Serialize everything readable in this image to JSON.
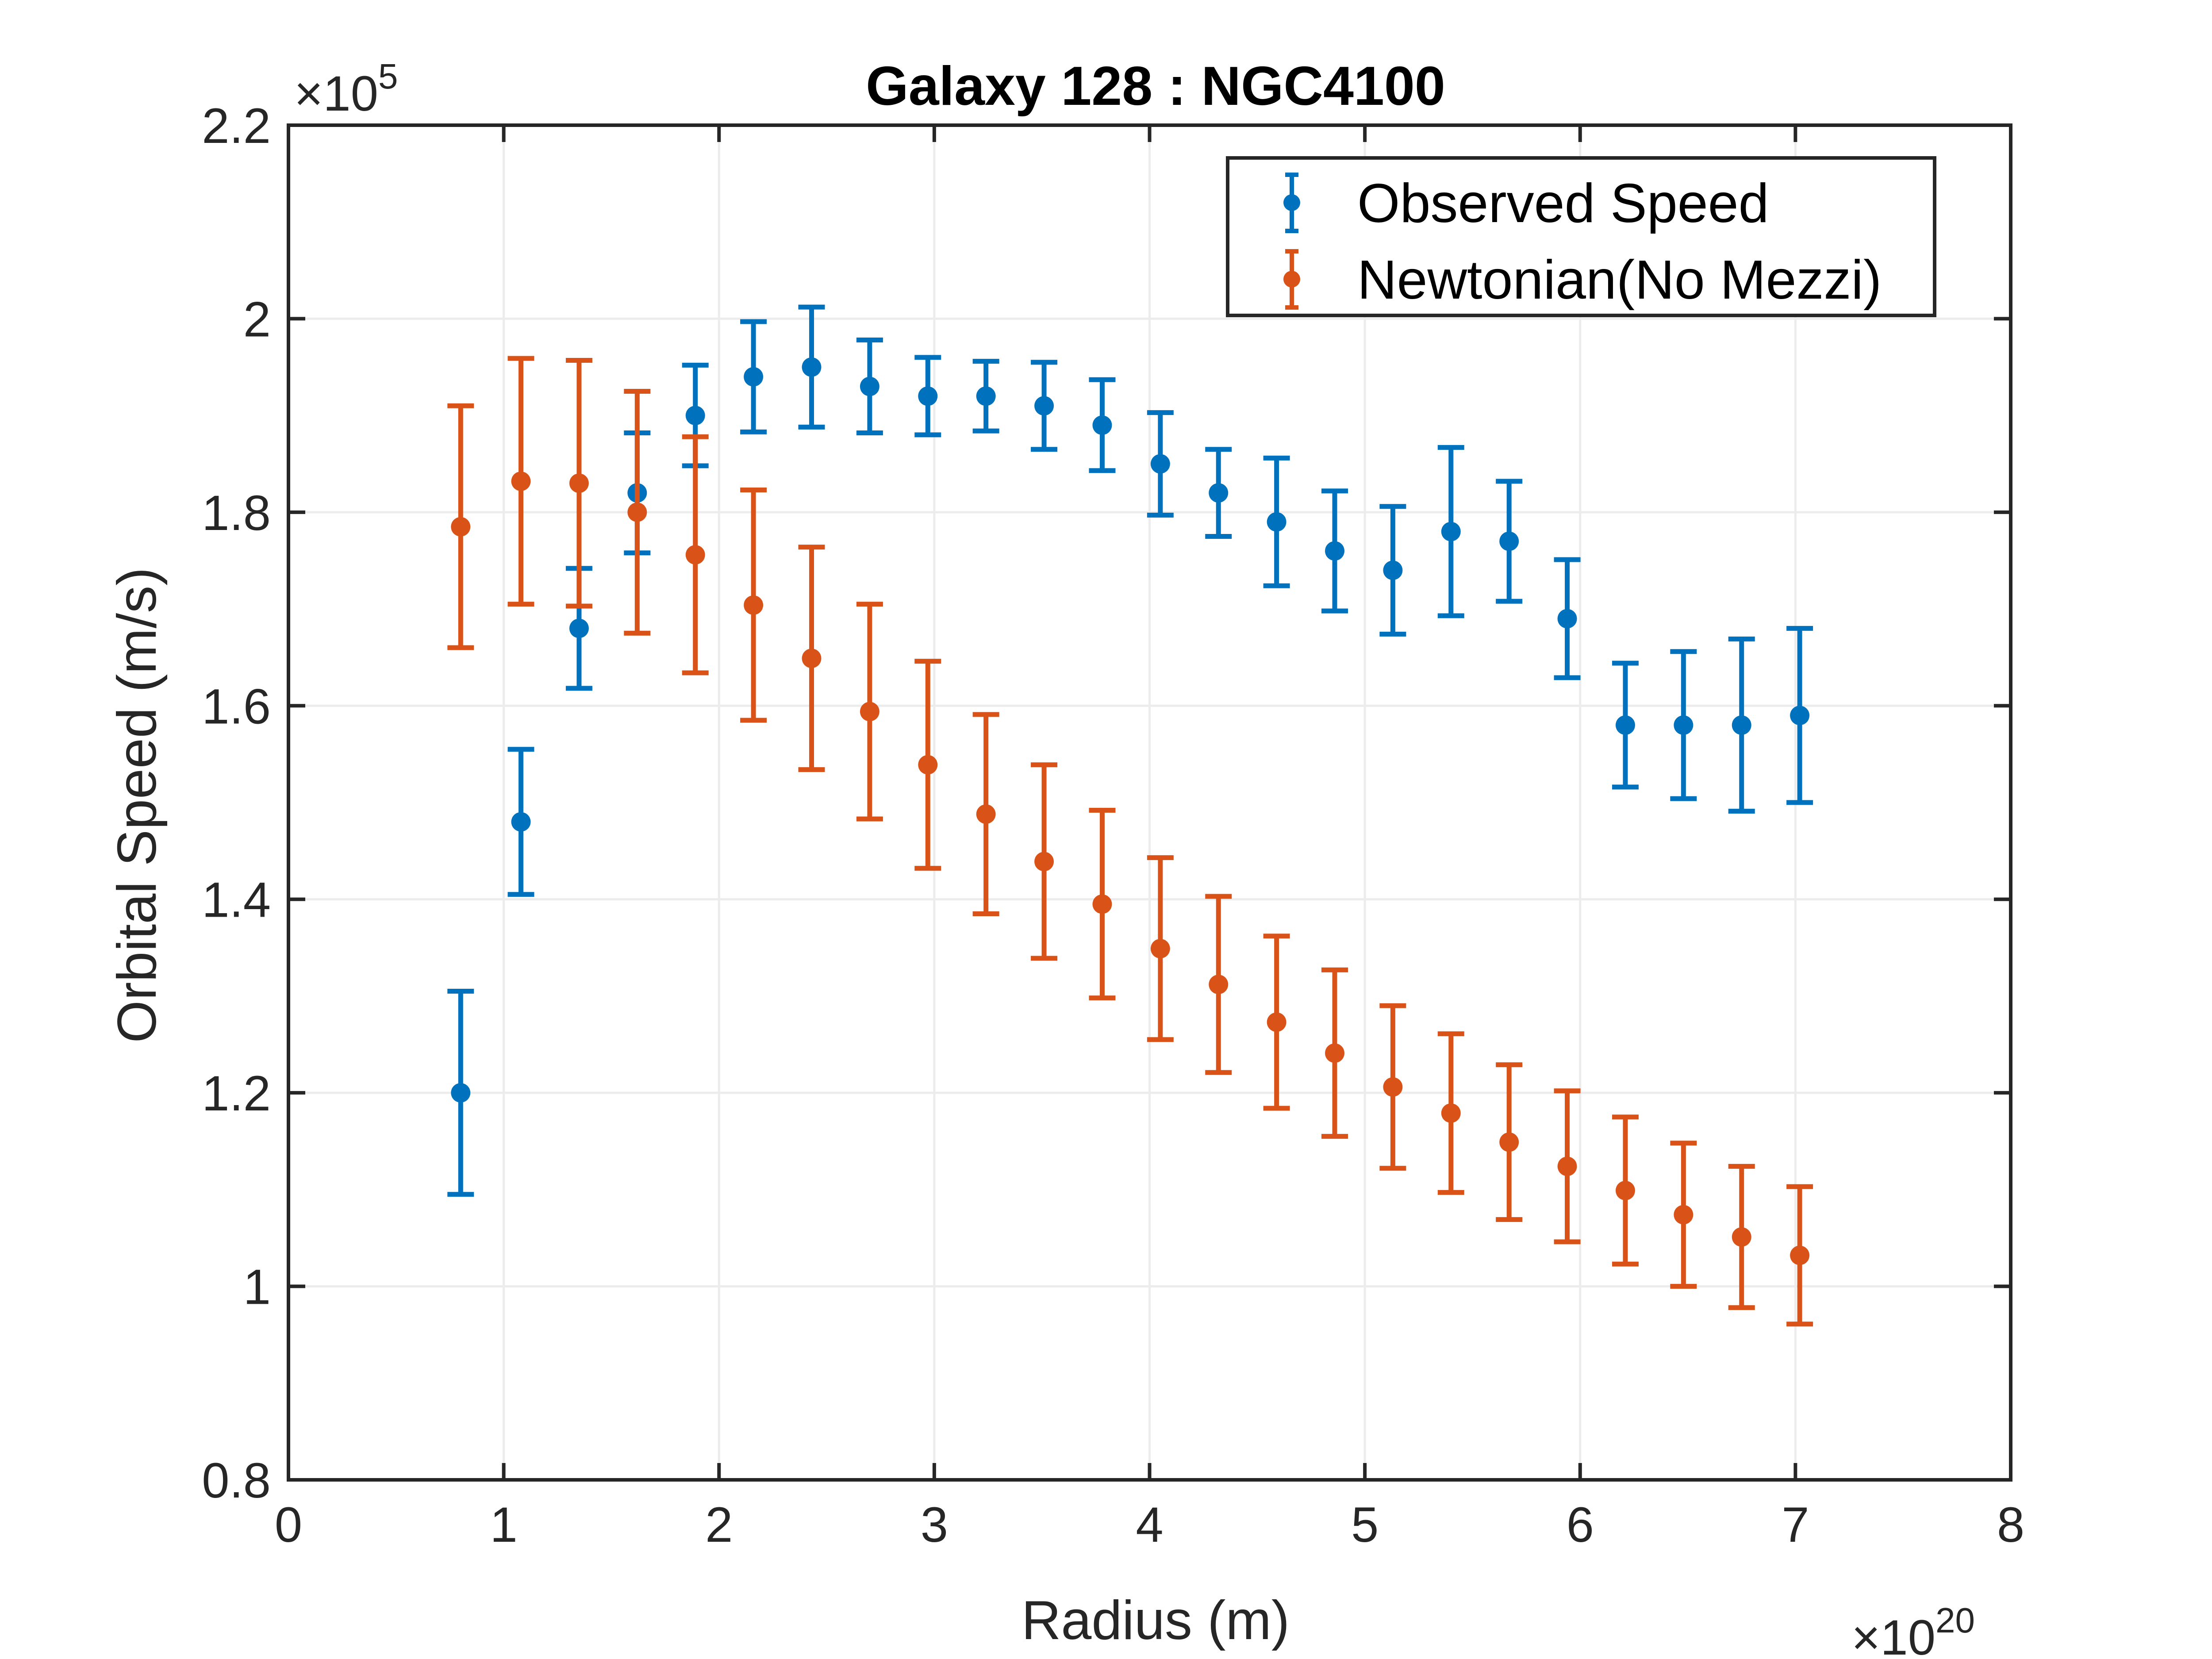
{
  "chart_data": {
    "type": "scatter",
    "title": "Galaxy 128 : NGC4100",
    "xlabel": "Radius (m)",
    "ylabel": "Orbital Speed (m/s)",
    "x_multiplier": {
      "base": "×10",
      "exponent": "20"
    },
    "y_multiplier": {
      "base": "×10",
      "exponent": "5"
    },
    "xlim": [
      0,
      8
    ],
    "ylim": [
      0.8,
      2.2
    ],
    "x_ticks": [
      0,
      1,
      2,
      3,
      4,
      5,
      6,
      7,
      8
    ],
    "x_tick_labels": [
      "0",
      "1",
      "2",
      "3",
      "4",
      "5",
      "6",
      "7",
      "8"
    ],
    "y_ticks": [
      0.8,
      1.0,
      1.2,
      1.4,
      1.6,
      1.8,
      2.0,
      2.2
    ],
    "y_tick_labels": [
      "0.8",
      "1",
      "1.2",
      "1.4",
      "1.6",
      "1.8",
      "2",
      "2.2"
    ],
    "grid": true,
    "legend_position": "top-right",
    "series": [
      {
        "name": "Observed Speed",
        "color": "#0072BD",
        "x": [
          0.8,
          1.08,
          1.35,
          1.62,
          1.89,
          2.16,
          2.43,
          2.7,
          2.97,
          3.24,
          3.51,
          3.78,
          4.05,
          4.32,
          4.59,
          4.86,
          5.13,
          5.4,
          5.67,
          5.94,
          6.21,
          6.48,
          6.75,
          7.02
        ],
        "y": [
          1.2,
          1.48,
          1.68,
          1.82,
          1.9,
          1.94,
          1.95,
          1.93,
          1.92,
          1.92,
          1.91,
          1.89,
          1.85,
          1.82,
          1.79,
          1.76,
          1.74,
          1.78,
          1.77,
          1.69,
          1.58,
          1.58,
          1.58,
          1.59
        ],
        "err": [
          0.105,
          0.075,
          0.062,
          0.062,
          0.052,
          0.057,
          0.062,
          0.048,
          0.04,
          0.036,
          0.045,
          0.047,
          0.053,
          0.045,
          0.066,
          0.062,
          0.066,
          0.087,
          0.062,
          0.061,
          0.064,
          0.076,
          0.089,
          0.09
        ]
      },
      {
        "name": "Newtonian(No Mezzi)",
        "color": "#D95319",
        "x": [
          0.8,
          1.08,
          1.35,
          1.62,
          1.89,
          2.16,
          2.43,
          2.7,
          2.97,
          3.24,
          3.51,
          3.78,
          4.05,
          4.32,
          4.59,
          4.86,
          5.13,
          5.4,
          5.67,
          5.94,
          6.21,
          6.48,
          6.75,
          7.02
        ],
        "y": [
          1.785,
          1.832,
          1.83,
          1.8,
          1.756,
          1.704,
          1.649,
          1.594,
          1.539,
          1.488,
          1.439,
          1.395,
          1.349,
          1.312,
          1.273,
          1.241,
          1.206,
          1.179,
          1.149,
          1.124,
          1.099,
          1.074,
          1.051,
          1.032
        ],
        "err": [
          0.125,
          0.127,
          0.127,
          0.125,
          0.122,
          0.119,
          0.115,
          0.111,
          0.107,
          0.103,
          0.1,
          0.097,
          0.094,
          0.091,
          0.089,
          0.086,
          0.084,
          0.082,
          0.08,
          0.078,
          0.076,
          0.074,
          0.073,
          0.071
        ]
      }
    ]
  }
}
